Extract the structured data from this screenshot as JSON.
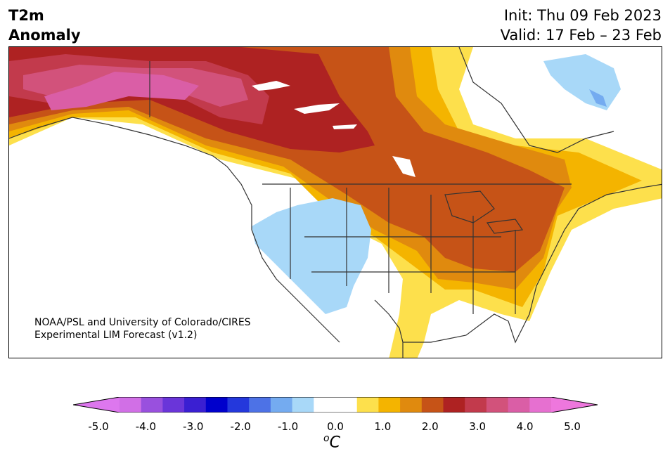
{
  "header": {
    "variable_line1": "T2m",
    "variable_line2": "Anomaly",
    "init": "Init: Thu 09 Feb 2023",
    "valid": "Valid: 17 Feb – 23 Feb"
  },
  "credit": {
    "line1": "NOAA/PSL and University of Colorado/CIRES",
    "line2": "Experimental LIM Forecast (v1.2)"
  },
  "colorbar": {
    "unit_base": "C",
    "unit_sup": "o",
    "ticks": [
      "-5.0",
      "-4.0",
      "-3.0",
      "-2.0",
      "-1.0",
      "0.0",
      "1.0",
      "2.0",
      "3.0",
      "4.0",
      "5.0"
    ],
    "colors": [
      "#d16fe6",
      "#9950de",
      "#6a35d9",
      "#3a1fd2",
      "#0000cc",
      "#2438dc",
      "#4d72e6",
      "#74abf0",
      "#a8d8f8",
      "#ffffff",
      "#ffffff",
      "#fde04c",
      "#f4b400",
      "#e08a0e",
      "#c65317",
      "#ae2222",
      "#c23a4c",
      "#d2527b",
      "#da5ea6",
      "#e670d0"
    ],
    "under_color": "#dd77ee",
    "over_color": "#ee77dd"
  },
  "map": {
    "fill_colors": {
      "c1": "#fde04c",
      "c2": "#f4b400",
      "c3": "#e08a0e",
      "c4": "#c65317",
      "c5": "#ae2222",
      "c6": "#c23a4c",
      "c7": "#d2527b",
      "c8": "#da5ea6",
      "cool": "#a8d8f8",
      "cool2": "#74abf0"
    }
  }
}
